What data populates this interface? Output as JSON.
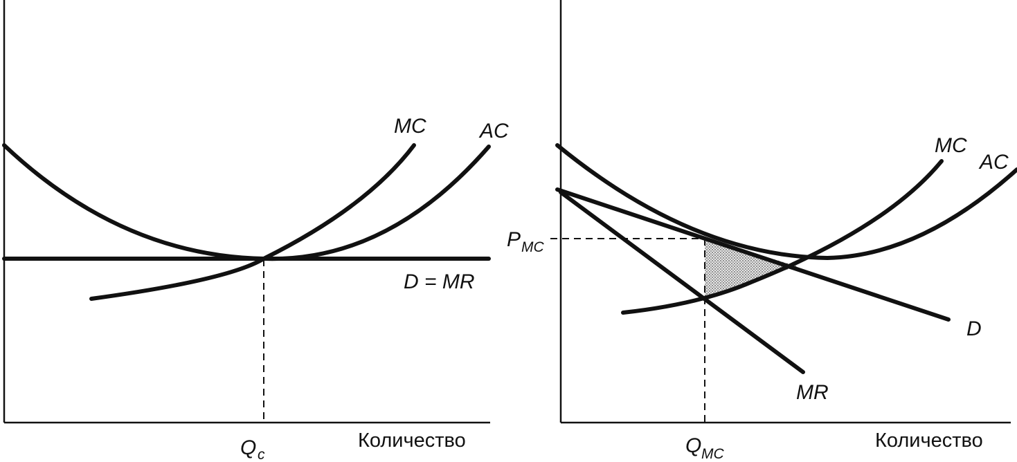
{
  "left_panel": {
    "mc_label": "MC",
    "ac_label": "AC",
    "d_mr_label": "D = MR",
    "q_symbol": "Q",
    "q_sub": "c",
    "x_axis_label": "Количество"
  },
  "right_panel": {
    "mc_label": "MC",
    "ac_label": "AC",
    "d_label": "D",
    "mr_label": "MR",
    "p_symbol": "P",
    "p_sub": "MC",
    "q_symbol": "Q",
    "q_sub": "MC",
    "x_axis_label": "Количество"
  },
  "colors": {
    "ink": "#111111",
    "shade": "#bdbdbd"
  }
}
